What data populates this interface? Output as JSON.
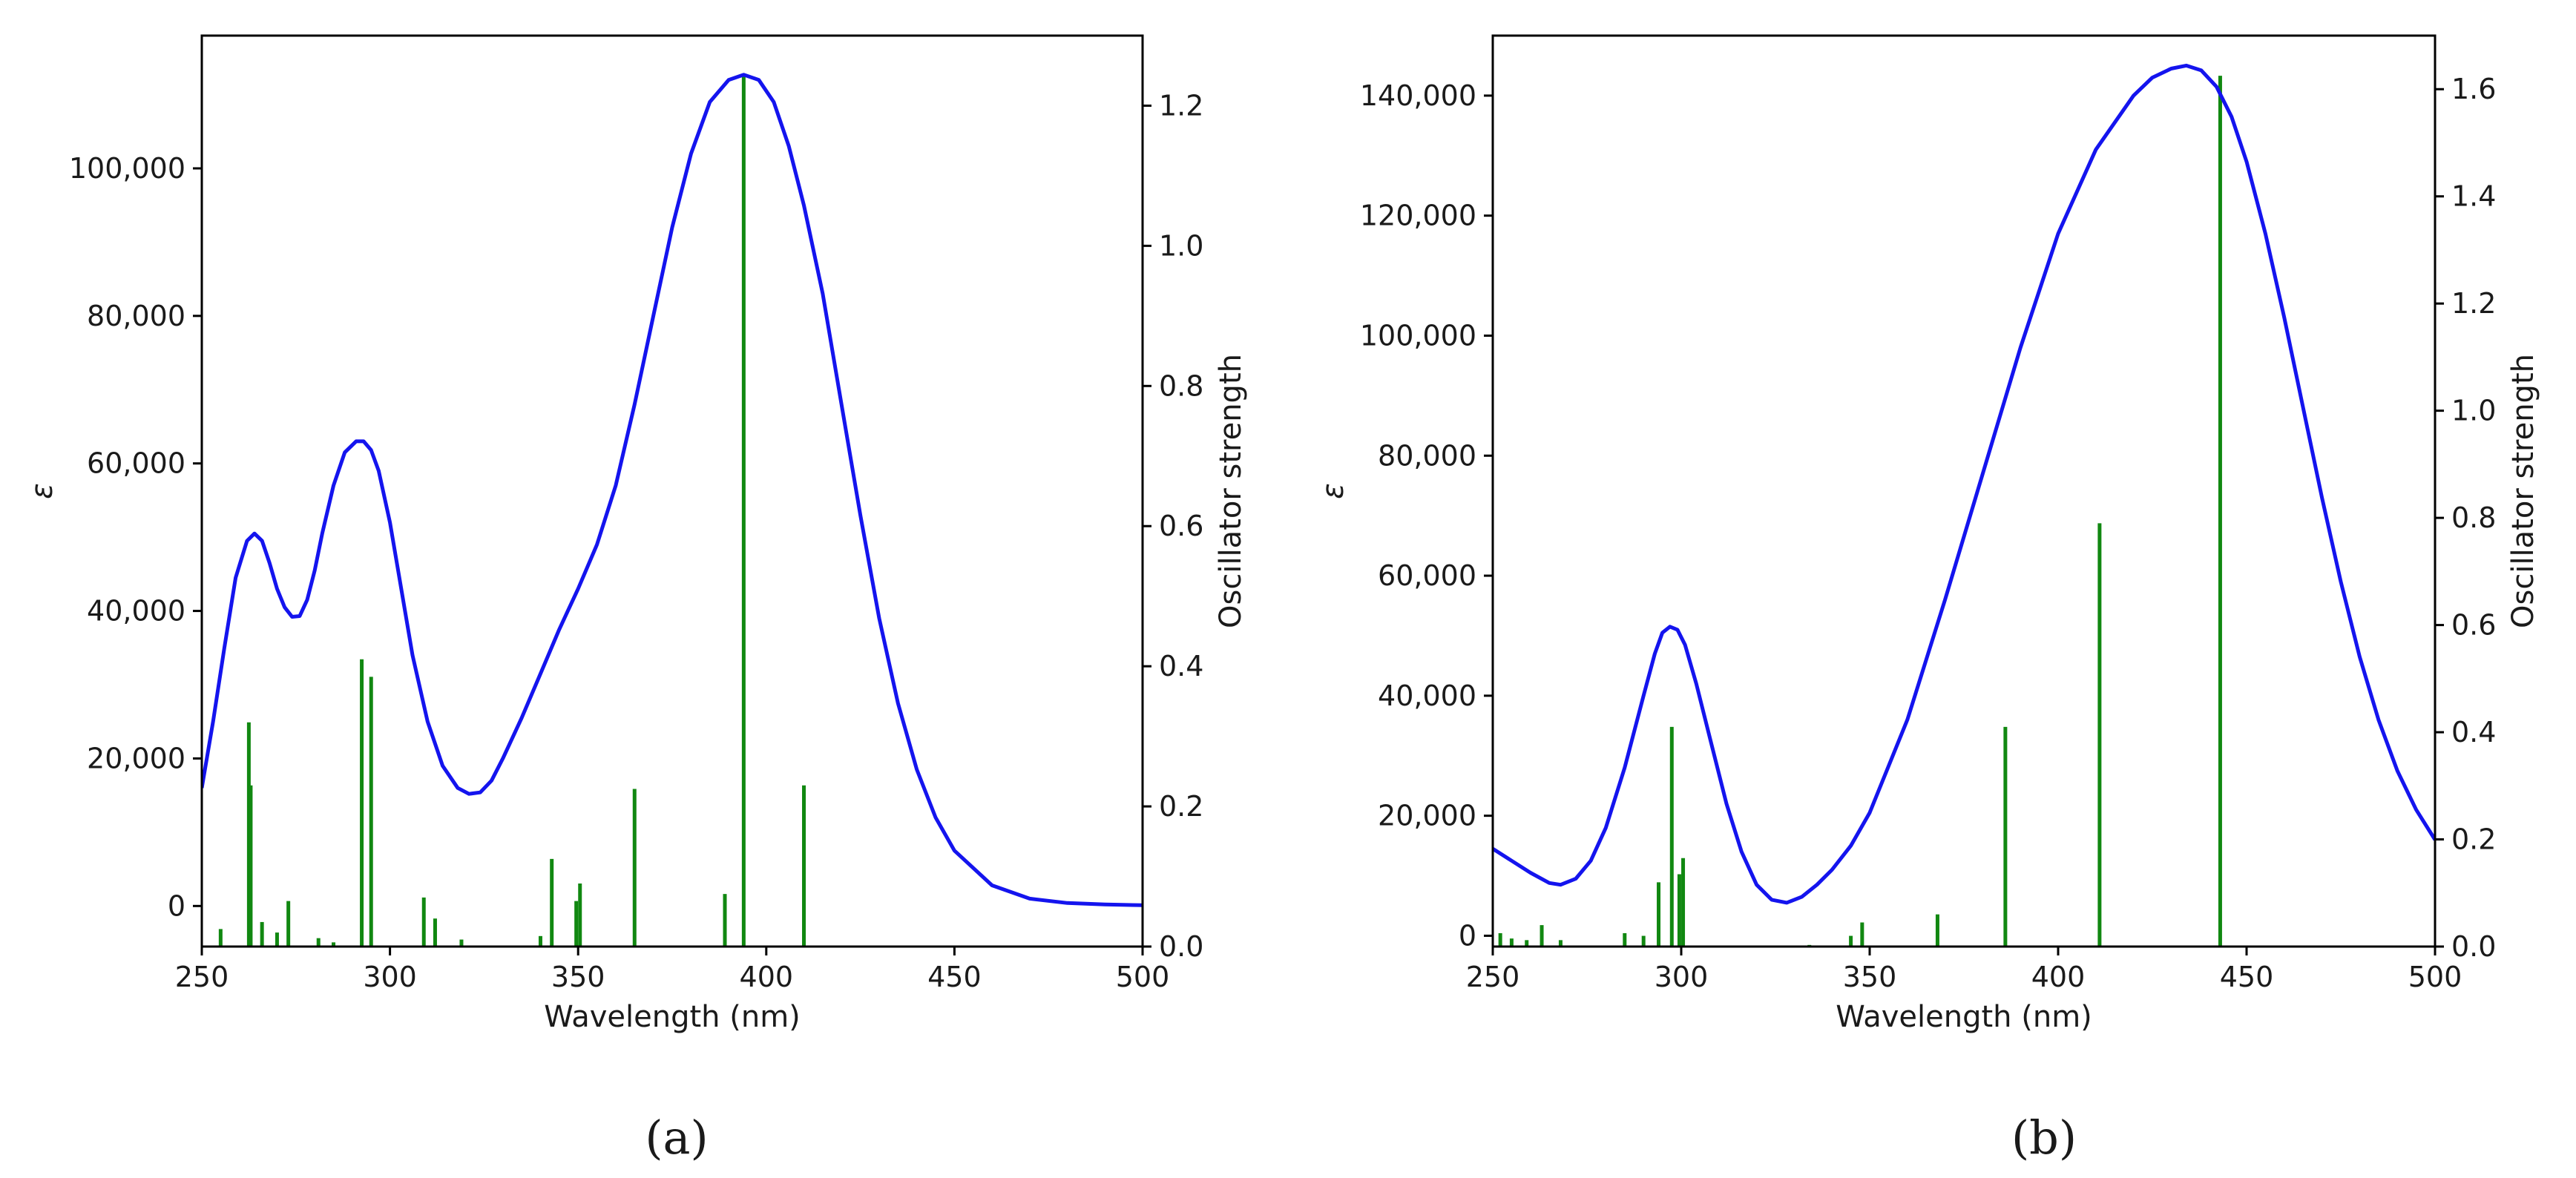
{
  "colors": {
    "curve": "#1414ee",
    "sticks": "#118811",
    "axes": "#000000"
  },
  "chart_data": [
    {
      "type": "line",
      "panel_label": "(a)",
      "xlabel": "Wavelength (nm)",
      "ylabel": "ε",
      "y2label": "Oscillator strength",
      "xlim": [
        250,
        500
      ],
      "ylim": [
        -5500,
        118000
      ],
      "y2lim": [
        0,
        1.3
      ],
      "xticks": [
        250,
        300,
        350,
        400,
        450,
        500
      ],
      "xtick_labels": [
        "250",
        "300",
        "350",
        "400",
        "450",
        "500"
      ],
      "yticks": [
        0,
        20000,
        40000,
        60000,
        80000,
        100000
      ],
      "ytick_labels": [
        "0",
        "20,000",
        "40,000",
        "60,000",
        "80,000",
        "100,000"
      ],
      "y2ticks": [
        0.0,
        0.2,
        0.4,
        0.6,
        0.8,
        1.0,
        1.2
      ],
      "y2tick_labels": [
        "0.0",
        "0.2",
        "0.4",
        "0.6",
        "0.8",
        "1.0",
        "1.2"
      ],
      "series": [
        {
          "name": "Absorption spectrum (ε)",
          "x": [
            250,
            253,
            256,
            259,
            262,
            264,
            266,
            268,
            270,
            272,
            274,
            276,
            278,
            280,
            282,
            285,
            288,
            291,
            293,
            295,
            297,
            300,
            303,
            306,
            310,
            314,
            318,
            321,
            324,
            327,
            330,
            335,
            340,
            345,
            350,
            355,
            360,
            365,
            370,
            375,
            380,
            385,
            390,
            394,
            398,
            402,
            406,
            410,
            415,
            420,
            425,
            430,
            435,
            440,
            445,
            450,
            460,
            470,
            480,
            490,
            500
          ],
          "y": [
            16000,
            25000,
            35000,
            44500,
            49500,
            50500,
            49500,
            46500,
            43000,
            40500,
            39200,
            39300,
            41500,
            45500,
            50500,
            57000,
            61500,
            63000,
            63000,
            61800,
            59000,
            52000,
            43000,
            34000,
            25000,
            19000,
            16000,
            15200,
            15400,
            17000,
            20000,
            25500,
            31500,
            37500,
            43000,
            49000,
            57000,
            68000,
            80000,
            92000,
            102000,
            109000,
            112000,
            112700,
            112000,
            109000,
            103000,
            95000,
            83000,
            68000,
            53000,
            39000,
            27500,
            18500,
            12000,
            7500,
            2800,
            1000,
            400,
            200,
            100
          ]
        },
        {
          "name": "Oscillator strength",
          "kind": "stick",
          "x": [
            255,
            262.5,
            263,
            266,
            270,
            273,
            281,
            285,
            292.5,
            295,
            309,
            312,
            319,
            340,
            343,
            349.5,
            350.5,
            365,
            389,
            394,
            410
          ],
          "y": [
            0.025,
            0.32,
            0.23,
            0.035,
            0.02,
            0.065,
            0.012,
            0.006,
            0.41,
            0.385,
            0.07,
            0.04,
            0.01,
            0.015,
            0.125,
            0.065,
            0.09,
            0.225,
            0.075,
            1.245,
            0.23
          ]
        }
      ]
    },
    {
      "type": "line",
      "panel_label": "(b)",
      "xlabel": "Wavelength (nm)",
      "ylabel": "ε",
      "y2label": "Oscillator strength",
      "xlim": [
        250,
        500
      ],
      "ylim": [
        -1800,
        150000
      ],
      "y2lim": [
        0,
        1.7
      ],
      "xticks": [
        250,
        300,
        350,
        400,
        450,
        500
      ],
      "xtick_labels": [
        "250",
        "300",
        "350",
        "400",
        "450",
        "500"
      ],
      "yticks": [
        0,
        20000,
        40000,
        60000,
        80000,
        100000,
        120000,
        140000
      ],
      "ytick_labels": [
        "0",
        "20,000",
        "40,000",
        "60,000",
        "80,000",
        "100,000",
        "120,000",
        "140,000"
      ],
      "y2ticks": [
        0.0,
        0.2,
        0.4,
        0.6,
        0.8,
        1.0,
        1.2,
        1.4,
        1.6
      ],
      "y2tick_labels": [
        "0.0",
        "0.2",
        "0.4",
        "0.6",
        "0.8",
        "1.0",
        "1.2",
        "1.4",
        "1.6"
      ],
      "series": [
        {
          "name": "Absorption spectrum (ε)",
          "x": [
            250,
            255,
            260,
            265,
            268,
            272,
            276,
            280,
            285,
            290,
            293,
            295,
            297,
            299,
            301,
            304,
            308,
            312,
            316,
            320,
            324,
            328,
            332,
            336,
            340,
            345,
            350,
            360,
            370,
            380,
            390,
            400,
            410,
            420,
            425,
            430,
            434,
            438,
            442,
            446,
            450,
            455,
            460,
            465,
            470,
            475,
            480,
            485,
            490,
            495,
            500
          ],
          "y": [
            14500,
            12500,
            10500,
            8800,
            8500,
            9500,
            12500,
            18000,
            28000,
            40000,
            47000,
            50500,
            51500,
            51000,
            48500,
            42000,
            32000,
            22000,
            14000,
            8500,
            6000,
            5500,
            6500,
            8500,
            11000,
            15000,
            20500,
            36000,
            56000,
            77000,
            98000,
            117000,
            131000,
            140000,
            143000,
            144500,
            145000,
            144200,
            141500,
            136500,
            129000,
            117000,
            103000,
            88000,
            73000,
            59000,
            46500,
            36000,
            27500,
            21000,
            16000
          ]
        },
        {
          "name": "Oscillator strength",
          "kind": "stick",
          "x": [
            252,
            255,
            259,
            263,
            268,
            285,
            290,
            294,
            297.5,
            299.5,
            300.5,
            334,
            345,
            348,
            368,
            386,
            411,
            443
          ],
          "y": [
            0.025,
            0.015,
            0.012,
            0.04,
            0.012,
            0.025,
            0.02,
            0.12,
            0.41,
            0.135,
            0.165,
            0.003,
            0.02,
            0.045,
            0.06,
            0.41,
            0.79,
            1.625
          ]
        }
      ]
    }
  ]
}
